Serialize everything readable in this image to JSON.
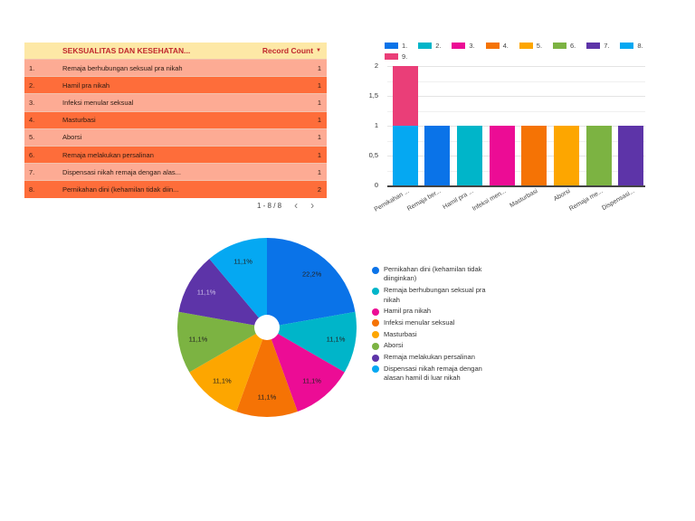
{
  "table": {
    "header": {
      "dimension": "SEKSUALITAS DAN KESEHATAN...",
      "metric": "Record Count",
      "sort_icon": "sort-desc-icon"
    },
    "rows": [
      {
        "idx": "1.",
        "name": "Remaja berhubungan seksual pra nikah",
        "value": "1"
      },
      {
        "idx": "2.",
        "name": "Hamil pra nikah",
        "value": "1"
      },
      {
        "idx": "3.",
        "name": "Infeksi menular seksual",
        "value": "1"
      },
      {
        "idx": "4.",
        "name": "Masturbasi",
        "value": "1"
      },
      {
        "idx": "5.",
        "name": "Aborsi",
        "value": "1"
      },
      {
        "idx": "6.",
        "name": "Remaja melakukan persalinan",
        "value": "1"
      },
      {
        "idx": "7.",
        "name": "Dispensasi nikah remaja dengan alas...",
        "value": "1"
      },
      {
        "idx": "8.",
        "name": "Pernikahan dini (kehamilan tidak diin...",
        "value": "2"
      }
    ],
    "pagination": {
      "range": "1 - 8 / 8",
      "prev": "‹",
      "next": "›"
    }
  },
  "colors": {
    "s1": "#0a73e8",
    "s2": "#00b5c9",
    "s3": "#ec0c95",
    "s4": "#f57305",
    "s5": "#fda600",
    "s6": "#7cb342",
    "s7": "#5d34a8",
    "s8": "#05a8f2",
    "s9": "#ea3e78"
  },
  "chart_data": [
    {
      "type": "bar",
      "stacked": true,
      "title": "",
      "xlabel": "",
      "ylabel": "",
      "ylim": [
        0,
        2
      ],
      "yticks": [
        "0",
        "0,5",
        "1",
        "1,5",
        "2"
      ],
      "categories": [
        "Pernikahan ...",
        "Remaja ber...",
        "Hamil pra ...",
        "Infeksi men...",
        "Masturbasi",
        "Aborsi",
        "Remaja me...",
        "Dispensasi..."
      ],
      "legend": [
        "1.",
        "2.",
        "3.",
        "4.",
        "5.",
        "6.",
        "7.",
        "8.",
        "9."
      ],
      "legend_position": "top",
      "series": [
        {
          "name": "1.",
          "values": [
            0,
            1,
            0,
            0,
            0,
            0,
            0,
            0
          ]
        },
        {
          "name": "2.",
          "values": [
            0,
            0,
            1,
            0,
            0,
            0,
            0,
            0
          ]
        },
        {
          "name": "3.",
          "values": [
            0,
            0,
            0,
            1,
            0,
            0,
            0,
            0
          ]
        },
        {
          "name": "4.",
          "values": [
            0,
            0,
            0,
            0,
            1,
            0,
            0,
            0
          ]
        },
        {
          "name": "5.",
          "values": [
            0,
            0,
            0,
            0,
            0,
            1,
            0,
            0
          ]
        },
        {
          "name": "6.",
          "values": [
            0,
            0,
            0,
            0,
            0,
            0,
            1,
            0
          ]
        },
        {
          "name": "7.",
          "values": [
            0,
            0,
            0,
            0,
            0,
            0,
            0,
            1
          ]
        },
        {
          "name": "8.",
          "values": [
            1,
            0,
            0,
            0,
            0,
            0,
            0,
            0
          ]
        },
        {
          "name": "9.",
          "values": [
            1,
            0,
            0,
            0,
            0,
            0,
            0,
            0
          ]
        }
      ],
      "grid": true
    },
    {
      "type": "pie",
      "donut_hole": true,
      "labels": [
        "Pernikahan dini (kehamilan tidak diinginkan)",
        "Remaja berhubungan seksual pra nikah",
        "Hamil pra nikah",
        "Infeksi menular seksual",
        "Masturbasi",
        "Aborsi",
        "Remaja melakukan persalinan",
        "Dispensasi nikah remaja dengan alasan hamil di luar nikah"
      ],
      "values": [
        2,
        1,
        1,
        1,
        1,
        1,
        1,
        1
      ],
      "percent_labels": [
        "22,2%",
        "11,1%",
        "11,1%",
        "11,1%",
        "11,1%",
        "11,1%",
        "11,1%",
        "11,1%"
      ],
      "legend_position": "right"
    }
  ]
}
